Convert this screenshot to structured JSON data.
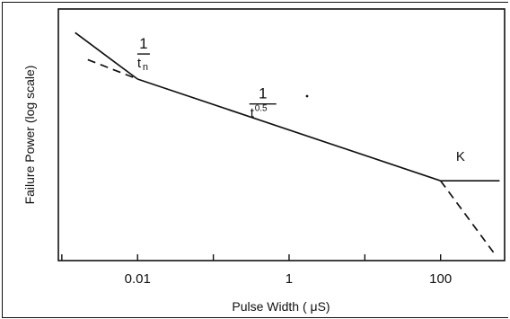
{
  "chart_data": {
    "type": "line",
    "title": "",
    "xlabel": "Pulse Width ( μS)",
    "ylabel": "Failure Power (log scale)",
    "x_scale": "log",
    "xlim": [
      0.0009,
      700
    ],
    "y_scale": "log",
    "y_ticks_labeled": false,
    "x_ticks": [
      0.001,
      0.01,
      0.1,
      1,
      10,
      100
    ],
    "x_tick_labels": [
      {
        "x": 0.01,
        "label": "0.01"
      },
      {
        "x": 1,
        "label": "1"
      },
      {
        "x": 100,
        "label": "100"
      }
    ],
    "grid": false,
    "series": [
      {
        "style": "solid",
        "x": [
          0.0015,
          0.01
        ],
        "y": [
          5.2,
          3.1
        ]
      },
      {
        "style": "solid",
        "x": [
          0.01,
          100
        ],
        "y": [
          3.1,
          1.0
        ]
      },
      {
        "style": "solid",
        "x": [
          100,
          600
        ],
        "y": [
          1.0,
          1.0
        ]
      },
      {
        "style": "dashed",
        "x": [
          0.0022,
          0.01
        ],
        "y": [
          3.85,
          3.1
        ]
      },
      {
        "style": "dashed",
        "x": [
          100,
          500
        ],
        "y": [
          1.0,
          0.45
        ]
      }
    ],
    "annotations": [
      {
        "id": "tn",
        "numerator": "1",
        "denominator": "t",
        "subscript": "n",
        "x": 0.012,
        "y": 4.1
      },
      {
        "id": "t05",
        "numerator": "1",
        "denominator": "t",
        "superscript": "0.5",
        "x": 0.45,
        "y": 2.35
      },
      {
        "id": "k",
        "text": "K",
        "x": 160,
        "y": 1.25
      }
    ]
  }
}
